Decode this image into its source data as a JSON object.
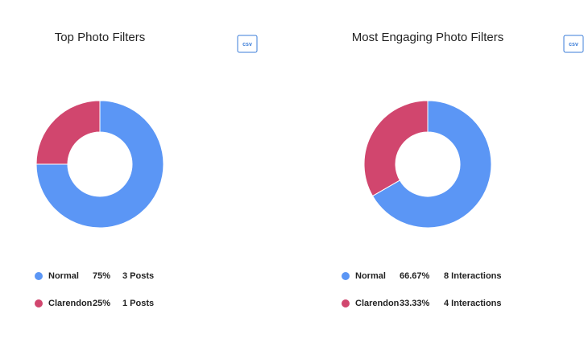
{
  "chart_data": [
    {
      "type": "pie",
      "title": "Top Photo Filters",
      "export_label": "csv",
      "categories": [
        "Normal",
        "Clarendon"
      ],
      "values": [
        75,
        25
      ],
      "value_labels": [
        "75%",
        "25%"
      ],
      "details": [
        "3 Posts",
        "1 Posts"
      ],
      "colors": [
        "#5b96f5",
        "#d1466e"
      ]
    },
    {
      "type": "pie",
      "title": "Most Engaging Photo Filters",
      "export_label": "csv",
      "categories": [
        "Normal",
        "Clarendon"
      ],
      "values": [
        66.67,
        33.33
      ],
      "value_labels": [
        "66.67%",
        "33.33%"
      ],
      "details": [
        "8 Interactions",
        "4 Interactions"
      ],
      "colors": [
        "#5b96f5",
        "#d1466e"
      ]
    }
  ]
}
